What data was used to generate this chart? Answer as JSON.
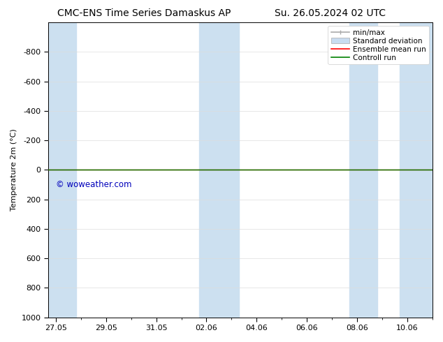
{
  "title_left": "CMC-ENS Time Series Damaskus AP",
  "title_right": "Su. 26.05.2024 02 UTC",
  "ylabel": "Temperature 2m (°C)",
  "watermark": "© woweather.com",
  "watermark_color": "#0000bb",
  "background_color": "#ffffff",
  "plot_bg_color": "#ffffff",
  "shaded_band_color": "#cce0f0",
  "ylim_bottom": 1000,
  "ylim_top": -1000,
  "ytick_values": [
    -800,
    -600,
    -400,
    -200,
    0,
    200,
    400,
    600,
    800,
    1000
  ],
  "ytick_labels": [
    "-800",
    "-600",
    "-400",
    "-200",
    "0",
    "200",
    "400",
    "600",
    "800",
    "1000"
  ],
  "xtick_labels": [
    "27.05",
    "29.05",
    "31.05",
    "02.06",
    "04.06",
    "06.06",
    "08.06",
    "10.06"
  ],
  "x_positions": [
    0,
    2,
    4,
    6,
    8,
    10,
    12,
    14
  ],
  "x_min": -0.3,
  "x_max": 15.0,
  "shaded_x_ranges": [
    [
      -0.3,
      0.8
    ],
    [
      5.7,
      7.3
    ],
    [
      11.7,
      12.8
    ],
    [
      13.7,
      15.0
    ]
  ],
  "line_y": 0,
  "ensemble_mean_color": "#ff0000",
  "control_run_color": "#008000",
  "minmax_color": "#aaaaaa",
  "stddev_color": "#c8dcf0",
  "legend_labels": [
    "min/max",
    "Standard deviation",
    "Ensemble mean run",
    "Controll run"
  ],
  "title_fontsize": 10,
  "axis_label_fontsize": 8,
  "tick_fontsize": 8,
  "legend_fontsize": 7.5
}
